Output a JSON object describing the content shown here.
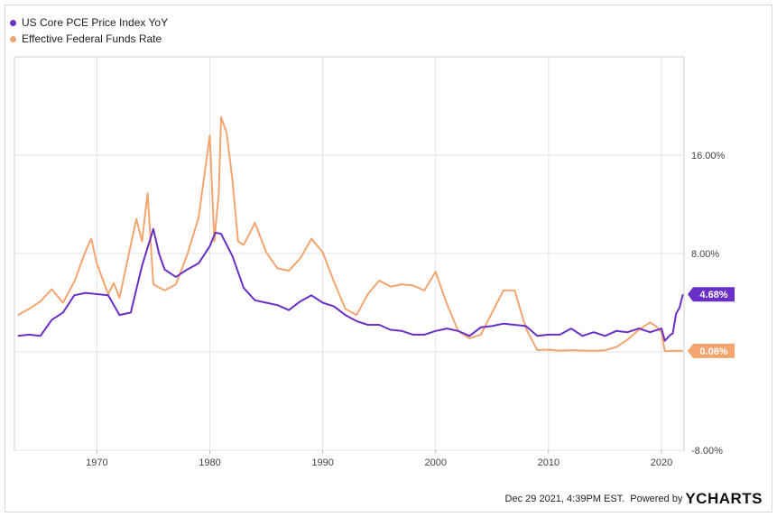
{
  "chart_data": {
    "type": "line",
    "title": "",
    "xlabel": "",
    "ylabel": "",
    "xlim": [
      1962.7,
      2022.0
    ],
    "ylim": [
      -8,
      24
    ],
    "x_ticks": [
      1970,
      1980,
      1990,
      2000,
      2010,
      2020
    ],
    "x_tick_labels": [
      "1970",
      "1980",
      "1990",
      "2000",
      "2010",
      "2020"
    ],
    "y_ticks": [
      16,
      8,
      0,
      -8
    ],
    "y_tick_labels": [
      "16.00%",
      "8.00%",
      "",
      "-8.00%"
    ],
    "grid": true,
    "legend_position": "top-left",
    "series": [
      {
        "name": "US Core PCE Price Index YoY",
        "color": "#6a2fc6",
        "last_value_label": "4.68%",
        "points": [
          [
            1963.0,
            1.3
          ],
          [
            1964.0,
            1.4
          ],
          [
            1965.0,
            1.3
          ],
          [
            1966.0,
            2.6
          ],
          [
            1967.0,
            3.2
          ],
          [
            1968.0,
            4.6
          ],
          [
            1969.0,
            4.8
          ],
          [
            1970.0,
            4.7
          ],
          [
            1971.0,
            4.6
          ],
          [
            1972.0,
            3.0
          ],
          [
            1973.0,
            3.2
          ],
          [
            1974.0,
            7.0
          ],
          [
            1975.0,
            10.0
          ],
          [
            1975.5,
            8.0
          ],
          [
            1976.0,
            6.7
          ],
          [
            1977.0,
            6.1
          ],
          [
            1978.0,
            6.7
          ],
          [
            1979.0,
            7.2
          ],
          [
            1980.0,
            8.6
          ],
          [
            1980.5,
            9.7
          ],
          [
            1981.0,
            9.6
          ],
          [
            1982.0,
            7.8
          ],
          [
            1983.0,
            5.2
          ],
          [
            1984.0,
            4.2
          ],
          [
            1985.0,
            4.0
          ],
          [
            1986.0,
            3.8
          ],
          [
            1987.0,
            3.4
          ],
          [
            1988.0,
            4.1
          ],
          [
            1989.0,
            4.6
          ],
          [
            1990.0,
            4.0
          ],
          [
            1991.0,
            3.7
          ],
          [
            1992.0,
            3.0
          ],
          [
            1993.0,
            2.5
          ],
          [
            1994.0,
            2.2
          ],
          [
            1995.0,
            2.2
          ],
          [
            1996.0,
            1.8
          ],
          [
            1997.0,
            1.7
          ],
          [
            1998.0,
            1.4
          ],
          [
            1999.0,
            1.4
          ],
          [
            2000.0,
            1.7
          ],
          [
            2001.0,
            1.9
          ],
          [
            2002.0,
            1.7
          ],
          [
            2003.0,
            1.3
          ],
          [
            2004.0,
            2.0
          ],
          [
            2005.0,
            2.1
          ],
          [
            2006.0,
            2.3
          ],
          [
            2007.0,
            2.2
          ],
          [
            2008.0,
            2.1
          ],
          [
            2009.0,
            1.3
          ],
          [
            2010.0,
            1.4
          ],
          [
            2011.0,
            1.4
          ],
          [
            2012.0,
            1.9
          ],
          [
            2013.0,
            1.3
          ],
          [
            2014.0,
            1.6
          ],
          [
            2015.0,
            1.3
          ],
          [
            2016.0,
            1.7
          ],
          [
            2017.0,
            1.6
          ],
          [
            2018.0,
            1.9
          ],
          [
            2019.0,
            1.6
          ],
          [
            2020.0,
            1.9
          ],
          [
            2020.3,
            0.9
          ],
          [
            2020.8,
            1.4
          ],
          [
            2021.0,
            1.5
          ],
          [
            2021.3,
            3.1
          ],
          [
            2021.6,
            3.6
          ],
          [
            2021.9,
            4.68
          ]
        ]
      },
      {
        "name": "Effective Federal Funds Rate",
        "color": "#f4a46e",
        "last_value_label": "0.08%",
        "points": [
          [
            1963.0,
            3.0
          ],
          [
            1964.0,
            3.5
          ],
          [
            1965.0,
            4.1
          ],
          [
            1966.0,
            5.1
          ],
          [
            1967.0,
            4.0
          ],
          [
            1968.0,
            5.7
          ],
          [
            1969.0,
            8.2
          ],
          [
            1969.5,
            9.2
          ],
          [
            1970.0,
            7.2
          ],
          [
            1971.0,
            4.7
          ],
          [
            1971.5,
            5.6
          ],
          [
            1972.0,
            4.4
          ],
          [
            1973.0,
            8.7
          ],
          [
            1973.5,
            10.8
          ],
          [
            1974.0,
            9.0
          ],
          [
            1974.5,
            12.9
          ],
          [
            1975.0,
            5.5
          ],
          [
            1976.0,
            5.0
          ],
          [
            1977.0,
            5.5
          ],
          [
            1978.0,
            7.9
          ],
          [
            1979.0,
            10.9
          ],
          [
            1980.0,
            17.6
          ],
          [
            1980.4,
            9.0
          ],
          [
            1980.8,
            13.0
          ],
          [
            1981.0,
            19.1
          ],
          [
            1981.5,
            17.8
          ],
          [
            1982.0,
            14.0
          ],
          [
            1982.5,
            9.0
          ],
          [
            1983.0,
            8.7
          ],
          [
            1984.0,
            10.5
          ],
          [
            1985.0,
            8.1
          ],
          [
            1986.0,
            6.8
          ],
          [
            1987.0,
            6.6
          ],
          [
            1988.0,
            7.6
          ],
          [
            1989.0,
            9.2
          ],
          [
            1990.0,
            8.1
          ],
          [
            1991.0,
            5.7
          ],
          [
            1992.0,
            3.5
          ],
          [
            1993.0,
            3.0
          ],
          [
            1994.0,
            4.7
          ],
          [
            1995.0,
            5.8
          ],
          [
            1996.0,
            5.3
          ],
          [
            1997.0,
            5.5
          ],
          [
            1998.0,
            5.4
          ],
          [
            1999.0,
            5.0
          ],
          [
            2000.0,
            6.5
          ],
          [
            2001.0,
            3.9
          ],
          [
            2002.0,
            1.7
          ],
          [
            2003.0,
            1.1
          ],
          [
            2004.0,
            1.4
          ],
          [
            2005.0,
            3.2
          ],
          [
            2006.0,
            5.0
          ],
          [
            2007.0,
            5.0
          ],
          [
            2008.0,
            1.9
          ],
          [
            2009.0,
            0.15
          ],
          [
            2010.0,
            0.18
          ],
          [
            2011.0,
            0.1
          ],
          [
            2012.0,
            0.14
          ],
          [
            2013.0,
            0.11
          ],
          [
            2014.0,
            0.09
          ],
          [
            2015.0,
            0.13
          ],
          [
            2016.0,
            0.4
          ],
          [
            2017.0,
            1.0
          ],
          [
            2018.0,
            1.8
          ],
          [
            2019.0,
            2.4
          ],
          [
            2019.5,
            2.1
          ],
          [
            2020.0,
            1.6
          ],
          [
            2020.3,
            0.05
          ],
          [
            2021.0,
            0.09
          ],
          [
            2021.9,
            0.08
          ]
        ]
      }
    ]
  },
  "footer": {
    "timestamp": "Dec 29 2021, 4:39PM EST.",
    "powered_by": "Powered by",
    "brand": "YCHARTS"
  }
}
